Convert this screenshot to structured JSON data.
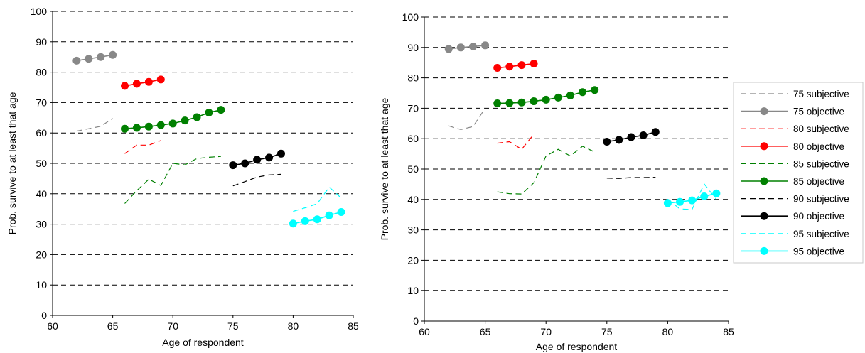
{
  "chart_data": [
    {
      "type": "line",
      "title": "",
      "xlabel": "Age of respondent",
      "ylabel": "Prob. survive to at least that age",
      "xlim": [
        60,
        85
      ],
      "ylim": [
        0,
        100
      ],
      "xticks": [
        60,
        65,
        70,
        75,
        80,
        85
      ],
      "yticks": [
        0,
        10,
        20,
        30,
        40,
        50,
        60,
        70,
        80,
        90,
        100
      ],
      "grid": "horizontal dashed",
      "series": [
        {
          "name": "75 subjective",
          "color": "#888888",
          "style": "dashed",
          "x": [
            62,
            63,
            64,
            65
          ],
          "y": [
            60.6,
            61.4,
            62.2,
            64.8
          ]
        },
        {
          "name": "75 objective",
          "color": "#888888",
          "style": "solid-marker",
          "x": [
            62,
            63,
            64,
            65
          ],
          "y": [
            83.8,
            84.4,
            85.0,
            85.7
          ]
        },
        {
          "name": "80 subjective",
          "color": "#ff0000",
          "style": "dashed",
          "x": [
            66,
            67,
            68,
            69
          ],
          "y": [
            53.2,
            56.0,
            56.0,
            57.5
          ]
        },
        {
          "name": "80 objective",
          "color": "#ff0000",
          "style": "solid-marker",
          "x": [
            66,
            67,
            68,
            69
          ],
          "y": [
            75.5,
            76.2,
            76.8,
            77.6
          ]
        },
        {
          "name": "85 subjective",
          "color": "#008000",
          "style": "dashed",
          "x": [
            66,
            67,
            68,
            69,
            70,
            71,
            72,
            73,
            74
          ],
          "y": [
            36.8,
            41.0,
            44.8,
            42.7,
            50.0,
            49.5,
            51.6,
            52.0,
            52.3
          ]
        },
        {
          "name": "85 objective",
          "color": "#008000",
          "style": "solid-marker",
          "x": [
            66,
            67,
            68,
            69,
            70,
            71,
            72,
            73,
            74
          ],
          "y": [
            61.4,
            61.7,
            62.1,
            62.6,
            63.1,
            64.1,
            65.2,
            66.7,
            67.6
          ]
        },
        {
          "name": "90 subjective",
          "color": "#000000",
          "style": "dashed",
          "x": [
            75,
            76,
            77,
            78,
            79
          ],
          "y": [
            42.6,
            44.0,
            45.5,
            46.2,
            46.4
          ]
        },
        {
          "name": "90 objective",
          "color": "#000000",
          "style": "solid-marker",
          "x": [
            75,
            76,
            77,
            78,
            79
          ],
          "y": [
            49.4,
            50.0,
            51.2,
            51.9,
            53.2
          ]
        },
        {
          "name": "95 subjective",
          "color": "#00ffff",
          "style": "dashed",
          "x": [
            80,
            81,
            82,
            83,
            84
          ],
          "y": [
            34.2,
            35.4,
            36.7,
            42.2,
            38.6
          ]
        },
        {
          "name": "95 objective",
          "color": "#00ffff",
          "style": "solid-marker",
          "x": [
            80,
            81,
            82,
            83,
            84
          ],
          "y": [
            30.2,
            31.0,
            31.6,
            32.9,
            34.0
          ]
        }
      ]
    },
    {
      "type": "line",
      "title": "",
      "xlabel": "Age of respondent",
      "ylabel": "Prob. survive to at least that age",
      "xlim": [
        60,
        85
      ],
      "ylim": [
        0,
        100
      ],
      "xticks": [
        60,
        65,
        70,
        75,
        80,
        85
      ],
      "yticks": [
        0,
        10,
        20,
        30,
        40,
        50,
        60,
        70,
        80,
        90,
        100
      ],
      "grid": "horizontal dashed",
      "legend_position": "right",
      "series": [
        {
          "name": "75 subjective",
          "color": "#888888",
          "style": "dashed",
          "x": [
            62,
            63,
            64,
            65
          ],
          "y": [
            64.2,
            63.0,
            64.0,
            70.0
          ]
        },
        {
          "name": "75 objective",
          "color": "#888888",
          "style": "solid-marker",
          "x": [
            62,
            63,
            64,
            65
          ],
          "y": [
            89.5,
            90.0,
            90.3,
            90.7
          ]
        },
        {
          "name": "80 subjective",
          "color": "#ff0000",
          "style": "dashed",
          "x": [
            66,
            67,
            68,
            69
          ],
          "y": [
            58.5,
            59.0,
            56.5,
            61.5
          ]
        },
        {
          "name": "80 objective",
          "color": "#ff0000",
          "style": "solid-marker",
          "x": [
            66,
            67,
            68,
            69
          ],
          "y": [
            83.3,
            83.7,
            84.2,
            84.7
          ]
        },
        {
          "name": "85 subjective",
          "color": "#008000",
          "style": "dashed",
          "x": [
            66,
            67,
            68,
            69,
            70,
            71,
            72,
            73,
            74
          ],
          "y": [
            42.5,
            41.9,
            41.8,
            45.5,
            54.3,
            56.5,
            54.3,
            57.5,
            55.6
          ]
        },
        {
          "name": "85 objective",
          "color": "#008000",
          "style": "solid-marker",
          "x": [
            66,
            67,
            68,
            69,
            70,
            71,
            72,
            73,
            74
          ],
          "y": [
            71.6,
            71.7,
            71.9,
            72.3,
            72.8,
            73.5,
            74.2,
            75.3,
            76.0
          ]
        },
        {
          "name": "90 subjective",
          "color": "#000000",
          "style": "dashed",
          "x": [
            75,
            76,
            77,
            78,
            79
          ],
          "y": [
            47.0,
            46.9,
            47.2,
            47.2,
            47.3
          ]
        },
        {
          "name": "90 objective",
          "color": "#000000",
          "style": "solid-marker",
          "x": [
            75,
            76,
            77,
            78,
            79
          ],
          "y": [
            59.0,
            59.6,
            60.5,
            61.1,
            62.2
          ]
        },
        {
          "name": "95 subjective",
          "color": "#00ffff",
          "style": "dashed",
          "x": [
            80,
            81,
            82,
            83,
            84
          ],
          "y": [
            40.1,
            36.9,
            36.7,
            45.1,
            40.0
          ]
        },
        {
          "name": "95 objective",
          "color": "#00ffff",
          "style": "solid-marker",
          "x": [
            80,
            81,
            82,
            83,
            84
          ],
          "y": [
            38.8,
            39.2,
            39.7,
            41.0,
            42.0
          ]
        }
      ]
    }
  ],
  "legend": [
    {
      "label": "75 subjective",
      "color": "#888888",
      "style": "dashed"
    },
    {
      "label": "75 objective",
      "color": "#888888",
      "style": "solid-marker"
    },
    {
      "label": "80 subjective",
      "color": "#ff0000",
      "style": "dashed"
    },
    {
      "label": "80 objective",
      "color": "#ff0000",
      "style": "solid-marker"
    },
    {
      "label": "85 subjective",
      "color": "#008000",
      "style": "dashed"
    },
    {
      "label": "85 objective",
      "color": "#008000",
      "style": "solid-marker"
    },
    {
      "label": "90 subjective",
      "color": "#000000",
      "style": "dashed"
    },
    {
      "label": "90 objective",
      "color": "#000000",
      "style": "solid-marker"
    },
    {
      "label": "95 subjective",
      "color": "#00ffff",
      "style": "dashed"
    },
    {
      "label": "95 objective",
      "color": "#00ffff",
      "style": "solid-marker"
    }
  ]
}
